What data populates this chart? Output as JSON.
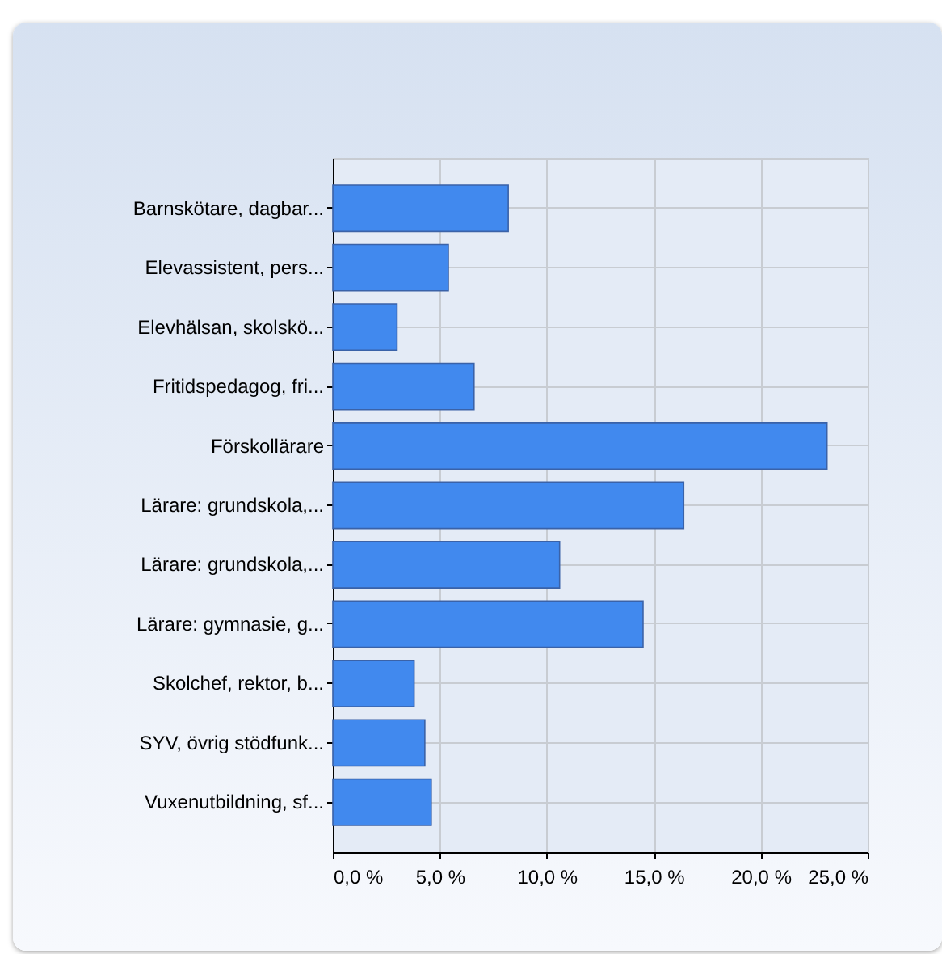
{
  "chart_data": {
    "type": "bar",
    "orientation": "horizontal",
    "categories": [
      "Barnskötare, dagbar...",
      "Elevassistent, pers...",
      "Elevhälsan, skolskö...",
      "Fritidspedagog, fri...",
      "Förskollärare",
      "Lärare: grundskola,...",
      "Lärare: grundskola,...",
      "Lärare: gymnasie, g...",
      "Skolchef, rektor, b...",
      "SYV, övrig stödfunk...",
      "Vuxenutbildning, sf..."
    ],
    "values": [
      8.2,
      5.4,
      3.0,
      6.6,
      23.1,
      16.4,
      10.6,
      14.5,
      3.8,
      4.3,
      4.6
    ],
    "color": "#4189ee",
    "xlim": [
      0,
      25
    ],
    "xticks": [
      {
        "value": 0,
        "label": "0,0 %"
      },
      {
        "value": 5,
        "label": "5,0 %"
      },
      {
        "value": 10,
        "label": "10,0 %"
      },
      {
        "value": 15,
        "label": "15,0 %"
      },
      {
        "value": 20,
        "label": "20,0 %"
      },
      {
        "value": 25,
        "label": "25,0 %"
      }
    ],
    "grid": true
  }
}
